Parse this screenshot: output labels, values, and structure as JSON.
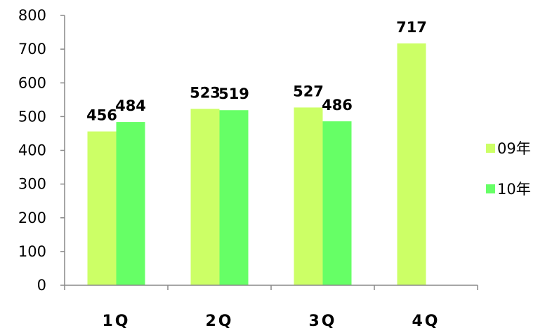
{
  "chart_data": {
    "type": "bar",
    "categories": [
      "1Q",
      "2Q",
      "3Q",
      "4Q"
    ],
    "series": [
      {
        "name": "09年",
        "values": [
          456,
          523,
          527,
          717
        ],
        "color": "#ccff66"
      },
      {
        "name": "10年",
        "values": [
          484,
          519,
          486,
          null
        ],
        "color": "#66ff66"
      }
    ],
    "title": "",
    "xlabel": "",
    "ylabel": "",
    "ylim": [
      0,
      800
    ],
    "yticks": [
      "0",
      "100",
      "200",
      "300",
      "400",
      "500",
      "600",
      "700",
      "800"
    ],
    "grid": false,
    "legend_position": "right"
  }
}
